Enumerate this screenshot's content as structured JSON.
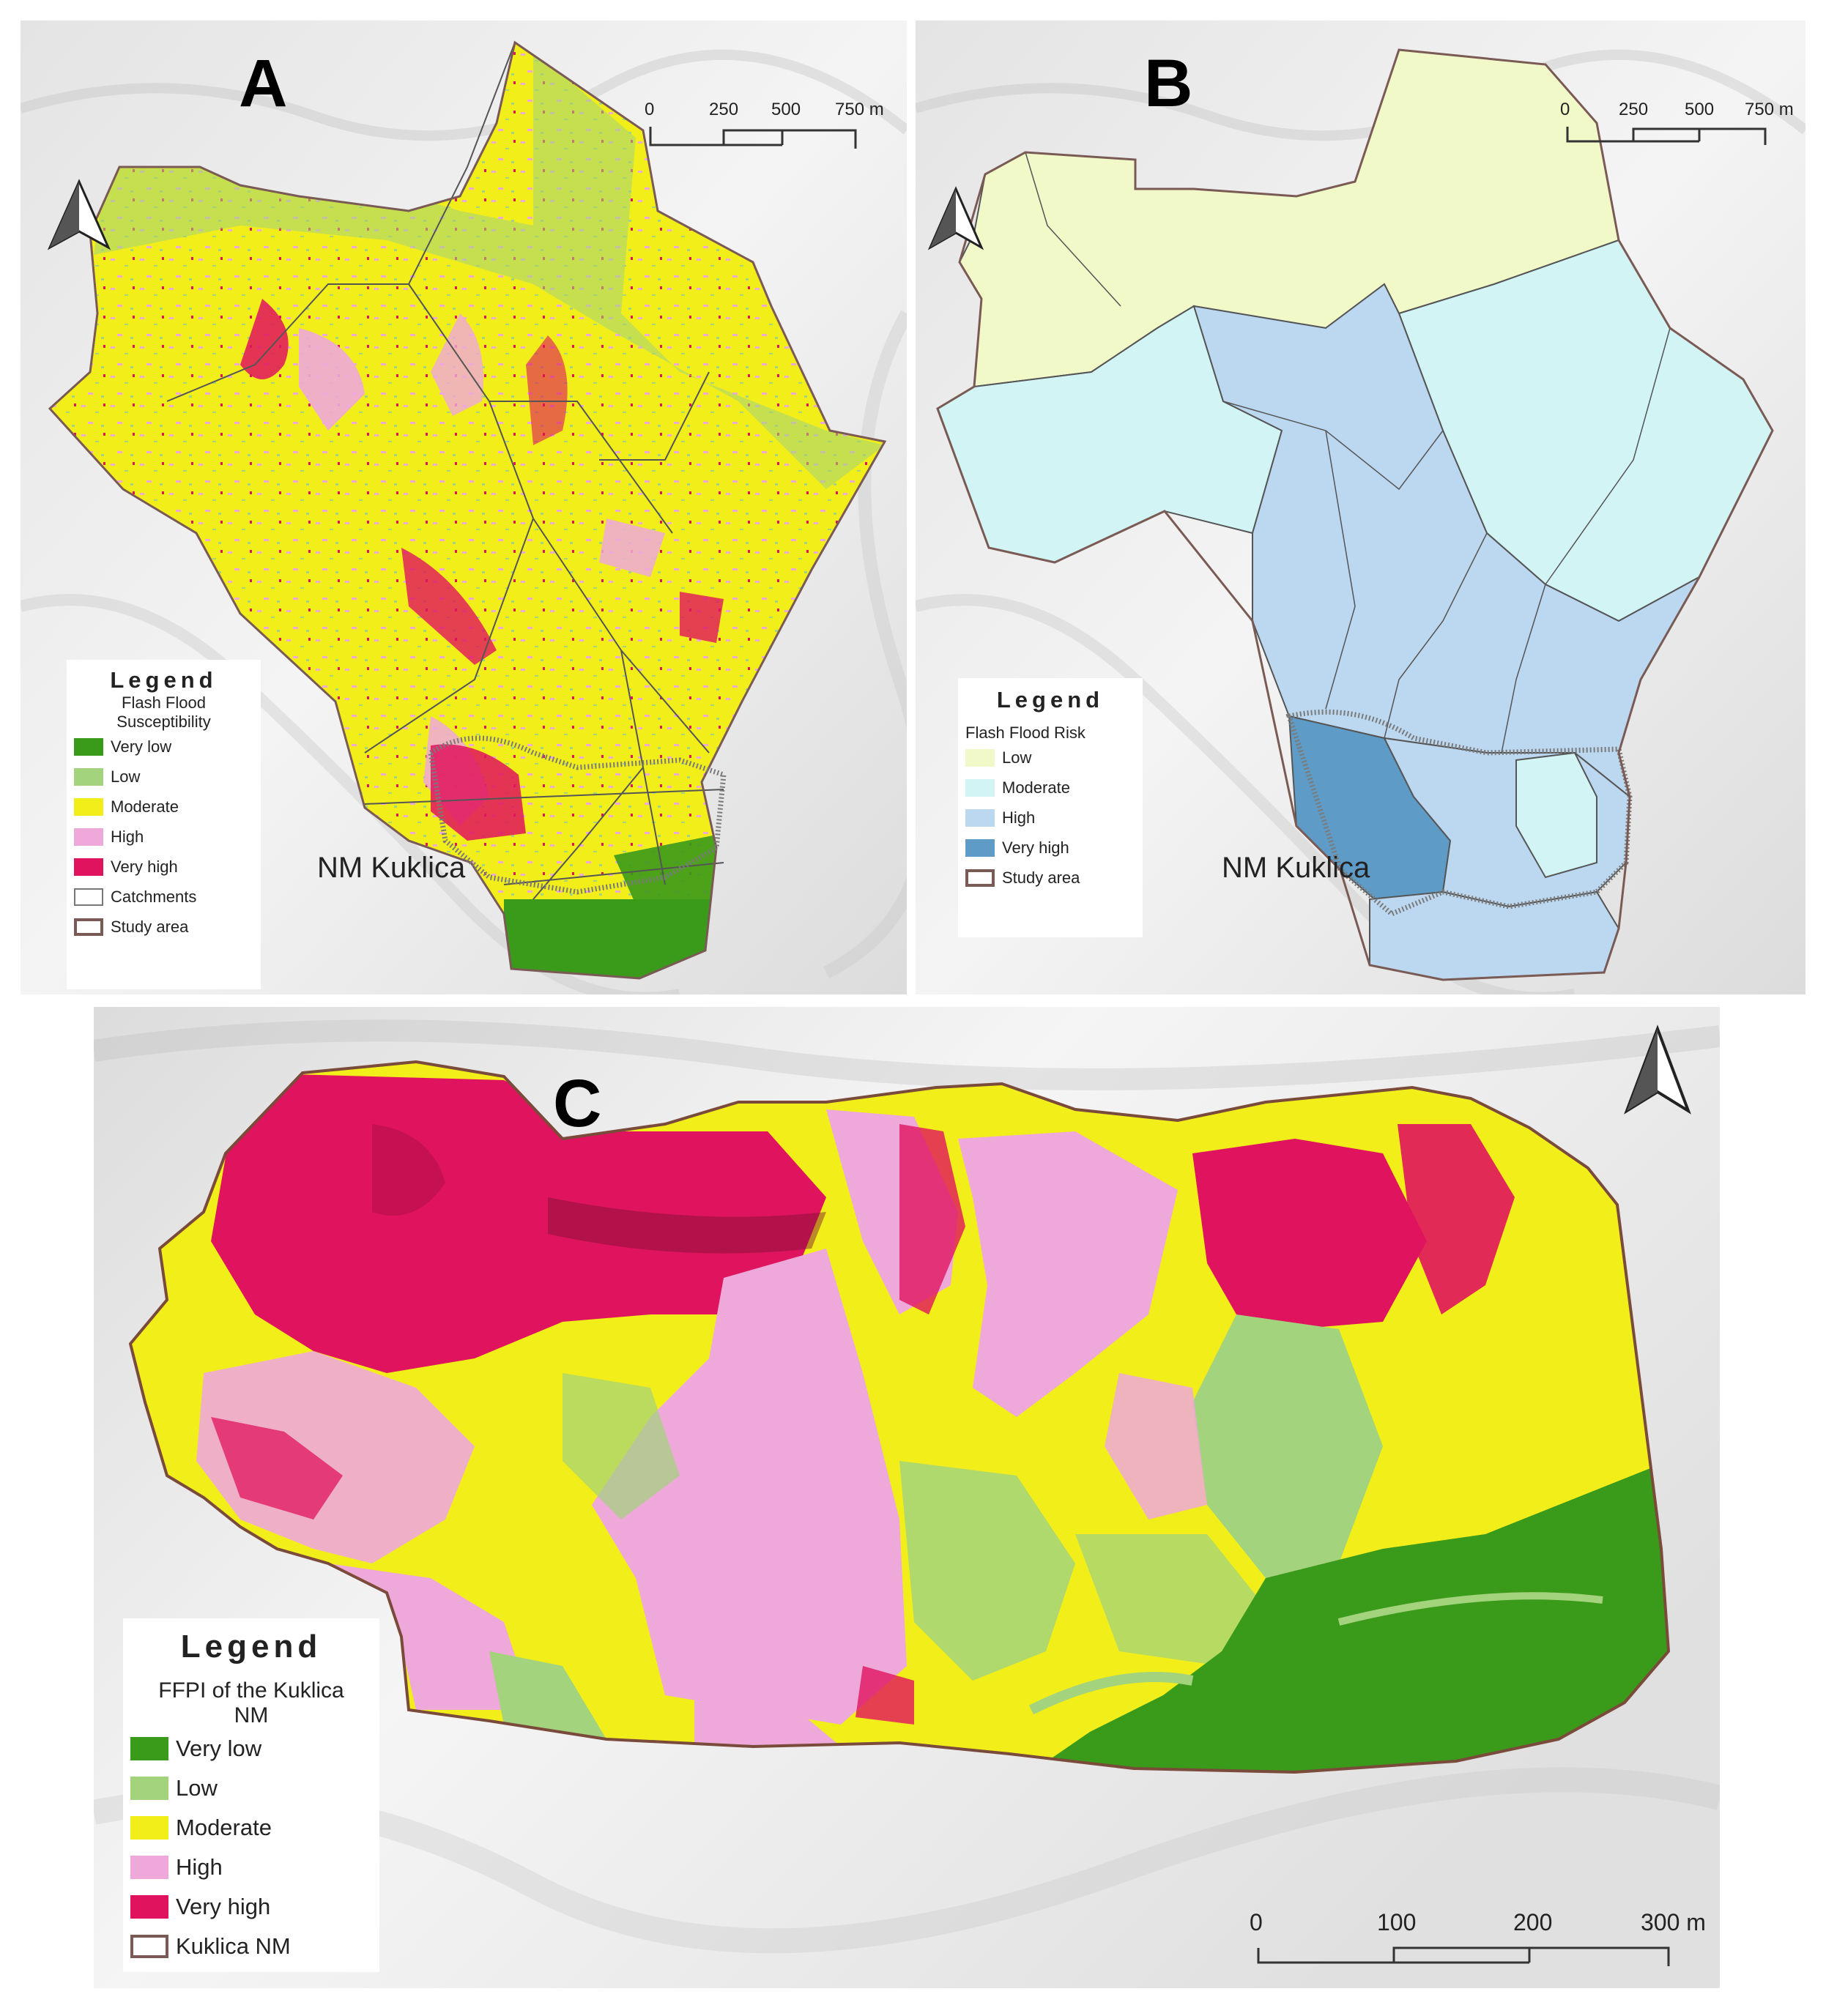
{
  "colors": {
    "very_low": "#3a9a1a",
    "low": "#a3d37c",
    "moderate": "#f2ee1a",
    "high": "#eea8da",
    "very_high": "#e0145e",
    "risk_low": "#f1f9c9",
    "risk_moderate": "#d2f4f5",
    "risk_high": "#bcd7f0",
    "risk_very_high": "#5e9cc7",
    "boundary": "#7a5a54"
  },
  "panel_a": {
    "letter": "A",
    "place_label": "NM Kuklica",
    "scale": {
      "ticks": [
        "0",
        "250",
        "500",
        "750 m"
      ]
    },
    "legend": {
      "title": "Legend",
      "subtitle_line1": "Flash Flood",
      "subtitle_line2": "Susceptibility",
      "items": [
        {
          "label": "Very low",
          "color": "#3a9a1a"
        },
        {
          "label": "Low",
          "color": "#a3d37c"
        },
        {
          "label": "Moderate",
          "color": "#f2ee1a"
        },
        {
          "label": "High",
          "color": "#eea8da"
        },
        {
          "label": "Very high",
          "color": "#e0145e"
        },
        {
          "label": "Catchments",
          "color": "#ffffff"
        },
        {
          "label": "Study area",
          "color": "#ffffff"
        }
      ]
    }
  },
  "panel_b": {
    "letter": "B",
    "place_label": "NM Kuklica",
    "scale": {
      "ticks": [
        "0",
        "250",
        "500",
        "750 m"
      ]
    },
    "legend": {
      "title": "Legend",
      "subtitle": "Flash Flood Risk",
      "items": [
        {
          "label": "Low",
          "color": "#f1f9c9"
        },
        {
          "label": "Moderate",
          "color": "#d2f4f5"
        },
        {
          "label": "High",
          "color": "#bcd7f0"
        },
        {
          "label": "Very high",
          "color": "#5e9cc7"
        },
        {
          "label": "Study area",
          "color": "#ffffff"
        }
      ]
    }
  },
  "panel_c": {
    "letter": "C",
    "scale": {
      "ticks": [
        "0",
        "100",
        "200",
        "300 m"
      ]
    },
    "legend": {
      "title": "Legend",
      "subtitle_line1": "FFPI of the Kuklica",
      "subtitle_line2": "NM",
      "items": [
        {
          "label": "Very low",
          "color": "#3a9a1a"
        },
        {
          "label": "Low",
          "color": "#a3d37c"
        },
        {
          "label": "Moderate",
          "color": "#f2ee1a"
        },
        {
          "label": "High",
          "color": "#eea8da"
        },
        {
          "label": "Very high",
          "color": "#e0145e"
        },
        {
          "label": "Kuklica NM",
          "color": "#ffffff"
        }
      ]
    }
  }
}
